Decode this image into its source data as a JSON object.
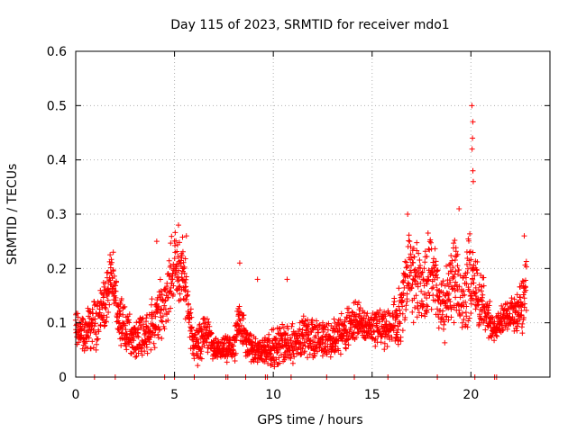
{
  "chart_data": {
    "type": "scatter",
    "title": "Day 115 of 2023, SRMTID for receiver mdo1",
    "xlabel": "GPS time / hours",
    "ylabel": "SRMTID / TECUs",
    "xlim": [
      0,
      24
    ],
    "ylim": [
      0,
      0.6
    ],
    "xticks": [
      0,
      5,
      10,
      15,
      20
    ],
    "yticks": [
      0,
      0.1,
      0.2,
      0.3,
      0.4,
      0.5,
      0.6
    ],
    "xtick_labels": [
      "0",
      "5",
      "10",
      "15",
      "20"
    ],
    "ytick_labels": [
      "0",
      "0.1",
      "0.2",
      "0.3",
      "0.4",
      "0.5",
      "0.6"
    ],
    "grid": true,
    "marker": "+",
    "color": "#ff0000",
    "envelope": {
      "x": [
        0,
        0.5,
        1.0,
        1.5,
        1.8,
        2.2,
        2.6,
        3.0,
        3.5,
        4.0,
        4.4,
        4.8,
        5.0,
        5.3,
        5.6,
        5.9,
        6.2,
        6.6,
        7.0,
        7.5,
        8.0,
        8.3,
        8.6,
        9.0,
        9.5,
        10.0,
        10.5,
        11.0,
        11.5,
        12.0,
        12.5,
        13.0,
        13.5,
        14.0,
        14.5,
        15.0,
        15.5,
        16.0,
        16.4,
        16.8,
        17.2,
        17.6,
        18.0,
        18.4,
        18.8,
        19.2,
        19.6,
        19.9,
        20.1,
        20.4,
        20.8,
        21.1,
        21.4,
        21.8,
        22.2,
        22.6,
        22.8
      ],
      "center": [
        0.09,
        0.08,
        0.1,
        0.14,
        0.18,
        0.12,
        0.08,
        0.07,
        0.08,
        0.1,
        0.13,
        0.18,
        0.21,
        0.2,
        0.17,
        0.07,
        0.06,
        0.09,
        0.05,
        0.05,
        0.05,
        0.11,
        0.07,
        0.05,
        0.05,
        0.05,
        0.06,
        0.06,
        0.08,
        0.07,
        0.07,
        0.07,
        0.08,
        0.1,
        0.1,
        0.09,
        0.09,
        0.09,
        0.12,
        0.19,
        0.17,
        0.16,
        0.21,
        0.13,
        0.14,
        0.19,
        0.14,
        0.18,
        0.2,
        0.14,
        0.12,
        0.09,
        0.1,
        0.11,
        0.11,
        0.13,
        0.17
      ],
      "spread": [
        0.03,
        0.03,
        0.04,
        0.05,
        0.04,
        0.04,
        0.03,
        0.03,
        0.03,
        0.04,
        0.05,
        0.06,
        0.05,
        0.06,
        0.05,
        0.03,
        0.03,
        0.03,
        0.02,
        0.02,
        0.02,
        0.05,
        0.03,
        0.02,
        0.02,
        0.03,
        0.03,
        0.03,
        0.03,
        0.03,
        0.03,
        0.03,
        0.03,
        0.03,
        0.03,
        0.03,
        0.03,
        0.03,
        0.05,
        0.06,
        0.06,
        0.05,
        0.07,
        0.04,
        0.06,
        0.07,
        0.05,
        0.07,
        0.06,
        0.05,
        0.04,
        0.02,
        0.02,
        0.03,
        0.03,
        0.04,
        0.05
      ]
    },
    "spikes": [
      {
        "x": 20.05,
        "y": 0.5
      },
      {
        "x": 20.1,
        "y": 0.47
      },
      {
        "x": 20.08,
        "y": 0.44
      },
      {
        "x": 20.06,
        "y": 0.42
      },
      {
        "x": 20.1,
        "y": 0.38
      },
      {
        "x": 20.12,
        "y": 0.36
      },
      {
        "x": 19.4,
        "y": 0.31
      },
      {
        "x": 16.8,
        "y": 0.3
      },
      {
        "x": 5.2,
        "y": 0.28
      },
      {
        "x": 5.6,
        "y": 0.26
      },
      {
        "x": 4.1,
        "y": 0.25
      },
      {
        "x": 22.7,
        "y": 0.26
      },
      {
        "x": 1.9,
        "y": 0.23
      },
      {
        "x": 8.3,
        "y": 0.21
      },
      {
        "x": 9.2,
        "y": 0.18
      },
      {
        "x": 10.7,
        "y": 0.18
      }
    ],
    "zero_points_x": [
      0.95,
      2.0,
      4.5,
      5.0,
      6.0,
      7.6,
      7.7,
      8.6,
      9.6,
      9.7,
      10.9,
      12.7,
      14.1,
      15.8,
      18.3,
      20.2,
      21.2,
      21.3
    ]
  }
}
